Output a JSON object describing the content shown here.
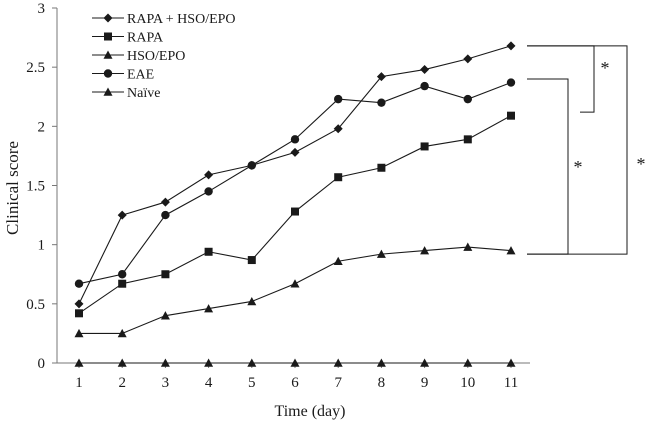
{
  "chart_data": {
    "type": "line",
    "xlabel": "Time (day)",
    "ylabel": "Clinical score",
    "x": [
      1,
      2,
      3,
      4,
      5,
      6,
      7,
      8,
      9,
      10,
      11
    ],
    "xticks": [
      "1",
      "2",
      "3",
      "4",
      "5",
      "6",
      "7",
      "8",
      "9",
      "10",
      "11"
    ],
    "ylim": [
      0,
      3
    ],
    "yticks": [
      "0",
      "0.5",
      "1",
      "1.5",
      "2",
      "2.5",
      "3"
    ],
    "grid": false,
    "legend_position": "top-left",
    "series": [
      {
        "name": "RAPA + HSO/EPO",
        "marker": "diamond",
        "values": [
          0.5,
          1.25,
          1.36,
          1.59,
          1.67,
          1.78,
          1.98,
          2.42,
          2.48,
          2.57,
          2.68
        ]
      },
      {
        "name": "RAPA",
        "marker": "square",
        "values": [
          0.42,
          0.67,
          0.75,
          0.94,
          0.87,
          1.28,
          1.57,
          1.65,
          1.83,
          1.89,
          2.09
        ]
      },
      {
        "name": "HSO/EPO",
        "marker": "triangle",
        "values": [
          0.25,
          0.25,
          0.4,
          0.46,
          0.52,
          0.67,
          0.86,
          0.92,
          0.95,
          0.98,
          0.95
        ]
      },
      {
        "name": "EAE",
        "marker": "circle",
        "values": [
          0.67,
          0.75,
          1.25,
          1.45,
          1.67,
          1.89,
          2.23,
          2.2,
          2.34,
          2.23,
          2.37
        ]
      },
      {
        "name": "Naïve",
        "marker": "triangle",
        "values": [
          0,
          0,
          0,
          0,
          0,
          0,
          0,
          0,
          0,
          0,
          0
        ]
      }
    ],
    "annotations": [
      {
        "label": "*",
        "top_y": 2.68,
        "bottom_y": 2.12
      },
      {
        "label": "*",
        "top_y": 2.4,
        "bottom_y": 0.92
      },
      {
        "label": "*",
        "top_y": 2.68,
        "bottom_y": 0.92
      }
    ]
  }
}
